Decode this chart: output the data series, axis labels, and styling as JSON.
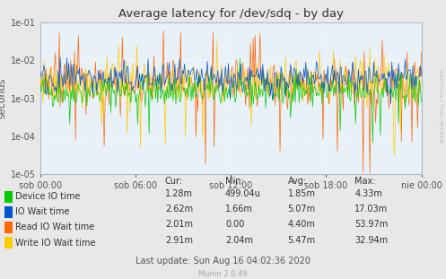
{
  "title": "Average latency for /dev/sdq - by day",
  "ylabel": "seconds",
  "background_color": "#e8e8e8",
  "plot_bg_color": "#e8f0f8",
  "grid_color": "#cccccc",
  "x_tick_labels": [
    "sob 00:00",
    "sob 06:00",
    "sob 12:00",
    "sob 18:00",
    "nie 00:00"
  ],
  "x_tick_positions": [
    0.0,
    0.25,
    0.5,
    0.75,
    1.0
  ],
  "series": [
    {
      "label": "Device IO time",
      "color": "#00cc00"
    },
    {
      "label": "IO Wait time",
      "color": "#0055cc"
    },
    {
      "label": "Read IO Wait time",
      "color": "#ff6600"
    },
    {
      "label": "Write IO Wait time",
      "color": "#ffcc00"
    }
  ],
  "legend_stats": [
    {
      "label": "Device IO time",
      "cur": "1.28m",
      "min": "499.04u",
      "avg": "1.85m",
      "max": "4.33m"
    },
    {
      "label": "IO Wait time",
      "cur": "2.62m",
      "min": "1.66m",
      "avg": "5.07m",
      "max": "17.03m"
    },
    {
      "label": "Read IO Wait time",
      "cur": "2.01m",
      "min": "0.00",
      "avg": "4.40m",
      "max": "53.97m"
    },
    {
      "label": "Write IO Wait time",
      "cur": "2.91m",
      "min": "2.04m",
      "avg": "5.47m",
      "max": "32.94m"
    }
  ],
  "stats_headers": [
    "Cur:",
    "Min:",
    "Avg:",
    "Max:"
  ],
  "footer": "Last update: Sun Aug 16 04:02:36 2020",
  "watermark": "Munin 2.0.49",
  "rrdtool_label": "RRDTOOL / TOBI OETIKER",
  "n_points": 400
}
